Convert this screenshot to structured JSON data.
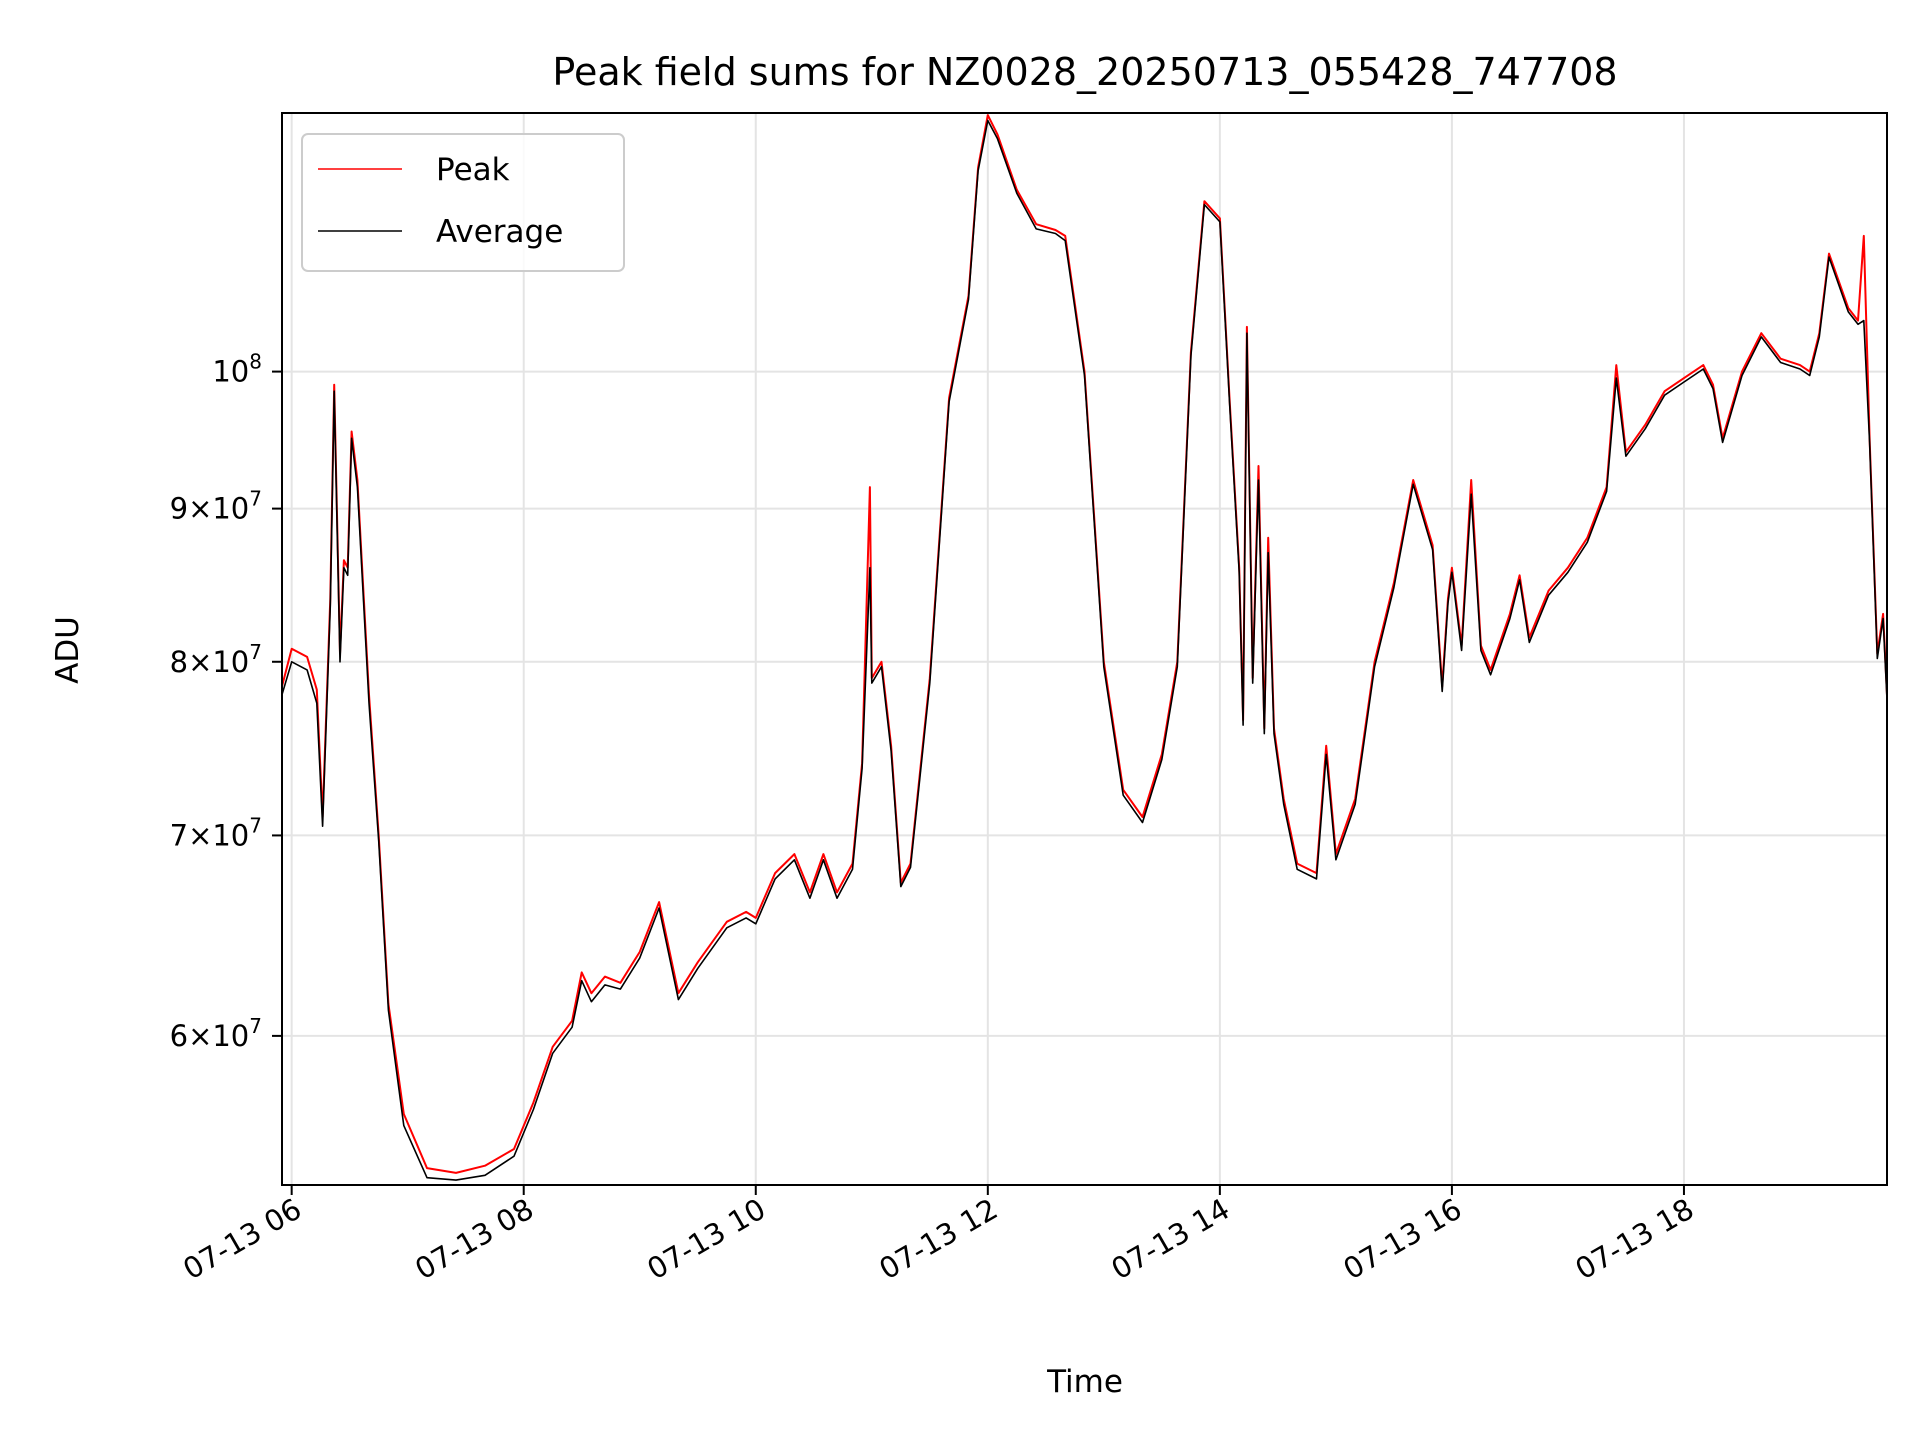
{
  "chart_data": {
    "type": "line",
    "title": "Peak field sums for NZ0028_20250713_055428_747708",
    "xlabel": "Time",
    "ylabel": "ADU",
    "y_scale": "log",
    "ylim": [
      53500000,
      122000000
    ],
    "xlim": [
      "2025-07-13 05:55",
      "2025-07-13 19:45"
    ],
    "grid": true,
    "legend_position": "top-left",
    "x_ticks": [
      {
        "t": "2025-07-13 06:00",
        "label": "07-13 06"
      },
      {
        "t": "2025-07-13 08:00",
        "label": "07-13 08"
      },
      {
        "t": "2025-07-13 10:00",
        "label": "07-13 10"
      },
      {
        "t": "2025-07-13 12:00",
        "label": "07-13 12"
      },
      {
        "t": "2025-07-13 14:00",
        "label": "07-13 14"
      },
      {
        "t": "2025-07-13 16:00",
        "label": "07-13 16"
      },
      {
        "t": "2025-07-13 18:00",
        "label": "07-13 18"
      }
    ],
    "y_ticks": [
      {
        "value": 60000000,
        "base": "6",
        "exp": "7"
      },
      {
        "value": 70000000,
        "base": "7",
        "exp": "7"
      },
      {
        "value": 80000000,
        "base": "8",
        "exp": "7"
      },
      {
        "value": 90000000,
        "base": "9",
        "exp": "7"
      },
      {
        "value": 100000000,
        "base": "",
        "exp": "8"
      }
    ],
    "series": [
      {
        "name": "Peak",
        "color": "#ff0000",
        "points": [
          [
            "2025-07-13 05:55",
            78.5
          ],
          [
            "2025-07-13 06:00",
            80.8
          ],
          [
            "2025-07-13 06:08",
            80.3
          ],
          [
            "2025-07-13 06:13",
            78.3
          ],
          [
            "2025-07-13 06:16",
            71.0
          ],
          [
            "2025-07-13 06:20",
            84.0
          ],
          [
            "2025-07-13 06:22",
            99.0
          ],
          [
            "2025-07-13 06:25",
            80.5
          ],
          [
            "2025-07-13 06:27",
            86.5
          ],
          [
            "2025-07-13 06:29",
            86.0
          ],
          [
            "2025-07-13 06:31",
            95.5
          ],
          [
            "2025-07-13 06:34",
            92.0
          ],
          [
            "2025-07-13 06:40",
            78.0
          ],
          [
            "2025-07-13 06:45",
            70.0
          ],
          [
            "2025-07-13 06:50",
            61.5
          ],
          [
            "2025-07-13 06:58",
            56.5
          ],
          [
            "2025-07-13 07:10",
            54.2
          ],
          [
            "2025-07-13 07:25",
            54.0
          ],
          [
            "2025-07-13 07:40",
            54.3
          ],
          [
            "2025-07-13 07:55",
            55.0
          ],
          [
            "2025-07-13 08:05",
            57.0
          ],
          [
            "2025-07-13 08:15",
            59.5
          ],
          [
            "2025-07-13 08:25",
            60.7
          ],
          [
            "2025-07-13 08:30",
            63.0
          ],
          [
            "2025-07-13 08:35",
            62.0
          ],
          [
            "2025-07-13 08:42",
            62.8
          ],
          [
            "2025-07-13 08:50",
            62.5
          ],
          [
            "2025-07-13 09:00",
            64.0
          ],
          [
            "2025-07-13 09:10",
            66.5
          ],
          [
            "2025-07-13 09:20",
            62.0
          ],
          [
            "2025-07-13 09:30",
            63.5
          ],
          [
            "2025-07-13 09:45",
            65.5
          ],
          [
            "2025-07-13 09:55",
            66.0
          ],
          [
            "2025-07-13 10:00",
            65.7
          ],
          [
            "2025-07-13 10:10",
            68.0
          ],
          [
            "2025-07-13 10:20",
            69.0
          ],
          [
            "2025-07-13 10:28",
            67.0
          ],
          [
            "2025-07-13 10:35",
            69.0
          ],
          [
            "2025-07-13 10:42",
            67.0
          ],
          [
            "2025-07-13 10:50",
            68.5
          ],
          [
            "2025-07-13 10:55",
            74.0
          ],
          [
            "2025-07-13 10:59",
            91.5
          ],
          [
            "2025-07-13 11:00",
            79.0
          ],
          [
            "2025-07-13 11:05",
            80.0
          ],
          [
            "2025-07-13 11:10",
            75.0
          ],
          [
            "2025-07-13 11:15",
            67.5
          ],
          [
            "2025-07-13 11:20",
            68.5
          ],
          [
            "2025-07-13 11:30",
            79.0
          ],
          [
            "2025-07-13 11:40",
            98.0
          ],
          [
            "2025-07-13 11:50",
            106.0
          ],
          [
            "2025-07-13 11:55",
            117.0
          ],
          [
            "2025-07-13 12:00",
            121.8
          ],
          [
            "2025-07-13 12:05",
            120.0
          ],
          [
            "2025-07-13 12:15",
            115.0
          ],
          [
            "2025-07-13 12:25",
            112.0
          ],
          [
            "2025-07-13 12:35",
            111.5
          ],
          [
            "2025-07-13 12:40",
            111.0
          ],
          [
            "2025-07-13 12:50",
            100.0
          ],
          [
            "2025-07-13 13:00",
            80.0
          ],
          [
            "2025-07-13 13:10",
            72.5
          ],
          [
            "2025-07-13 13:20",
            71.0
          ],
          [
            "2025-07-13 13:30",
            74.5
          ],
          [
            "2025-07-13 13:38",
            80.0
          ],
          [
            "2025-07-13 13:45",
            101.5
          ],
          [
            "2025-07-13 13:52",
            114.0
          ],
          [
            "2025-07-13 14:00",
            112.5
          ],
          [
            "2025-07-13 14:05",
            98.0
          ],
          [
            "2025-07-13 14:10",
            86.0
          ],
          [
            "2025-07-13 14:12",
            76.5
          ],
          [
            "2025-07-13 14:14",
            103.5
          ],
          [
            "2025-07-13 14:17",
            79.0
          ],
          [
            "2025-07-13 14:20",
            93.0
          ],
          [
            "2025-07-13 14:23",
            76.0
          ],
          [
            "2025-07-13 14:25",
            88.0
          ],
          [
            "2025-07-13 14:28",
            76.0
          ],
          [
            "2025-07-13 14:33",
            72.0
          ],
          [
            "2025-07-13 14:40",
            68.5
          ],
          [
            "2025-07-13 14:50",
            68.0
          ],
          [
            "2025-07-13 14:55",
            75.0
          ],
          [
            "2025-07-13 15:00",
            69.0
          ],
          [
            "2025-07-13 15:10",
            72.0
          ],
          [
            "2025-07-13 15:20",
            80.0
          ],
          [
            "2025-07-13 15:30",
            85.0
          ],
          [
            "2025-07-13 15:40",
            92.0
          ],
          [
            "2025-07-13 15:50",
            87.5
          ],
          [
            "2025-07-13 15:55",
            78.5
          ],
          [
            "2025-07-13 15:58",
            84.0
          ],
          [
            "2025-07-13 16:00",
            86.0
          ],
          [
            "2025-07-13 16:05",
            81.0
          ],
          [
            "2025-07-13 16:10",
            92.0
          ],
          [
            "2025-07-13 16:15",
            81.0
          ],
          [
            "2025-07-13 16:20",
            79.5
          ],
          [
            "2025-07-13 16:30",
            83.0
          ],
          [
            "2025-07-13 16:35",
            85.5
          ],
          [
            "2025-07-13 16:40",
            81.5
          ],
          [
            "2025-07-13 16:50",
            84.5
          ],
          [
            "2025-07-13 17:00",
            86.0
          ],
          [
            "2025-07-13 17:10",
            88.0
          ],
          [
            "2025-07-13 17:20",
            91.5
          ],
          [
            "2025-07-13 17:25",
            100.5
          ],
          [
            "2025-07-13 17:30",
            94.0
          ],
          [
            "2025-07-13 17:40",
            96.0
          ],
          [
            "2025-07-13 17:50",
            98.5
          ],
          [
            "2025-07-13 18:00",
            99.5
          ],
          [
            "2025-07-13 18:10",
            100.5
          ],
          [
            "2025-07-13 18:15",
            99.0
          ],
          [
            "2025-07-13 18:20",
            95.0
          ],
          [
            "2025-07-13 18:30",
            100.0
          ],
          [
            "2025-07-13 18:40",
            103.0
          ],
          [
            "2025-07-13 18:50",
            101.0
          ],
          [
            "2025-07-13 19:00",
            100.5
          ],
          [
            "2025-07-13 19:05",
            100.0
          ],
          [
            "2025-07-13 19:10",
            103.0
          ],
          [
            "2025-07-13 19:15",
            109.5
          ],
          [
            "2025-07-13 19:25",
            105.0
          ],
          [
            "2025-07-13 19:30",
            104.0
          ],
          [
            "2025-07-13 19:33",
            111.0
          ],
          [
            "2025-07-13 19:36",
            95.0
          ],
          [
            "2025-07-13 19:40",
            80.5
          ],
          [
            "2025-07-13 19:43",
            83.0
          ],
          [
            "2025-07-13 19:45",
            78.0
          ]
        ]
      },
      {
        "name": "Average",
        "color": "#000000",
        "points": [
          [
            "2025-07-13 05:55",
            78.0
          ],
          [
            "2025-07-13 06:00",
            80.0
          ],
          [
            "2025-07-13 06:08",
            79.5
          ],
          [
            "2025-07-13 06:13",
            77.5
          ],
          [
            "2025-07-13 06:16",
            70.5
          ],
          [
            "2025-07-13 06:20",
            83.5
          ],
          [
            "2025-07-13 06:22",
            98.5
          ],
          [
            "2025-07-13 06:25",
            80.0
          ],
          [
            "2025-07-13 06:27",
            86.0
          ],
          [
            "2025-07-13 06:29",
            85.5
          ],
          [
            "2025-07-13 06:31",
            95.0
          ],
          [
            "2025-07-13 06:34",
            91.5
          ],
          [
            "2025-07-13 06:40",
            77.5
          ],
          [
            "2025-07-13 06:45",
            69.7
          ],
          [
            "2025-07-13 06:50",
            61.2
          ],
          [
            "2025-07-13 06:58",
            56.0
          ],
          [
            "2025-07-13 07:10",
            53.8
          ],
          [
            "2025-07-13 07:25",
            53.7
          ],
          [
            "2025-07-13 07:40",
            53.9
          ],
          [
            "2025-07-13 07:55",
            54.7
          ],
          [
            "2025-07-13 08:05",
            56.7
          ],
          [
            "2025-07-13 08:15",
            59.2
          ],
          [
            "2025-07-13 08:25",
            60.4
          ],
          [
            "2025-07-13 08:30",
            62.6
          ],
          [
            "2025-07-13 08:35",
            61.6
          ],
          [
            "2025-07-13 08:42",
            62.4
          ],
          [
            "2025-07-13 08:50",
            62.2
          ],
          [
            "2025-07-13 09:00",
            63.7
          ],
          [
            "2025-07-13 09:10",
            66.2
          ],
          [
            "2025-07-13 09:20",
            61.7
          ],
          [
            "2025-07-13 09:30",
            63.2
          ],
          [
            "2025-07-13 09:45",
            65.2
          ],
          [
            "2025-07-13 09:55",
            65.7
          ],
          [
            "2025-07-13 10:00",
            65.4
          ],
          [
            "2025-07-13 10:10",
            67.7
          ],
          [
            "2025-07-13 10:20",
            68.7
          ],
          [
            "2025-07-13 10:28",
            66.7
          ],
          [
            "2025-07-13 10:35",
            68.7
          ],
          [
            "2025-07-13 10:42",
            66.7
          ],
          [
            "2025-07-13 10:50",
            68.2
          ],
          [
            "2025-07-13 10:55",
            73.7
          ],
          [
            "2025-07-13 10:59",
            86.0
          ],
          [
            "2025-07-13 11:00",
            78.7
          ],
          [
            "2025-07-13 11:05",
            79.7
          ],
          [
            "2025-07-13 11:10",
            74.7
          ],
          [
            "2025-07-13 11:15",
            67.3
          ],
          [
            "2025-07-13 11:20",
            68.3
          ],
          [
            "2025-07-13 11:30",
            78.7
          ],
          [
            "2025-07-13 11:40",
            97.7
          ],
          [
            "2025-07-13 11:50",
            105.7
          ],
          [
            "2025-07-13 11:55",
            116.7
          ],
          [
            "2025-07-13 12:00",
            121.3
          ],
          [
            "2025-07-13 12:05",
            119.6
          ],
          [
            "2025-07-13 12:15",
            114.7
          ],
          [
            "2025-07-13 12:25",
            111.6
          ],
          [
            "2025-07-13 12:35",
            111.2
          ],
          [
            "2025-07-13 12:40",
            110.6
          ],
          [
            "2025-07-13 12:50",
            99.7
          ],
          [
            "2025-07-13 13:00",
            79.7
          ],
          [
            "2025-07-13 13:10",
            72.2
          ],
          [
            "2025-07-13 13:20",
            70.7
          ],
          [
            "2025-07-13 13:30",
            74.2
          ],
          [
            "2025-07-13 13:38",
            79.7
          ],
          [
            "2025-07-13 13:45",
            101.2
          ],
          [
            "2025-07-13 13:52",
            113.7
          ],
          [
            "2025-07-13 14:00",
            112.2
          ],
          [
            "2025-07-13 14:05",
            97.7
          ],
          [
            "2025-07-13 14:10",
            85.7
          ],
          [
            "2025-07-13 14:12",
            76.2
          ],
          [
            "2025-07-13 14:14",
            103.0
          ],
          [
            "2025-07-13 14:17",
            78.7
          ],
          [
            "2025-07-13 14:20",
            92.0
          ],
          [
            "2025-07-13 14:23",
            75.7
          ],
          [
            "2025-07-13 14:25",
            87.0
          ],
          [
            "2025-07-13 14:28",
            75.7
          ],
          [
            "2025-07-13 14:33",
            71.7
          ],
          [
            "2025-07-13 14:40",
            68.2
          ],
          [
            "2025-07-13 14:50",
            67.7
          ],
          [
            "2025-07-13 14:55",
            74.5
          ],
          [
            "2025-07-13 15:00",
            68.7
          ],
          [
            "2025-07-13 15:10",
            71.7
          ],
          [
            "2025-07-13 15:20",
            79.7
          ],
          [
            "2025-07-13 15:30",
            84.7
          ],
          [
            "2025-07-13 15:40",
            91.7
          ],
          [
            "2025-07-13 15:50",
            87.2
          ],
          [
            "2025-07-13 15:55",
            78.2
          ],
          [
            "2025-07-13 15:58",
            83.7
          ],
          [
            "2025-07-13 16:00",
            85.7
          ],
          [
            "2025-07-13 16:05",
            80.7
          ],
          [
            "2025-07-13 16:10",
            91.0
          ],
          [
            "2025-07-13 16:15",
            80.7
          ],
          [
            "2025-07-13 16:20",
            79.2
          ],
          [
            "2025-07-13 16:30",
            82.7
          ],
          [
            "2025-07-13 16:35",
            85.2
          ],
          [
            "2025-07-13 16:40",
            81.2
          ],
          [
            "2025-07-13 16:50",
            84.2
          ],
          [
            "2025-07-13 17:00",
            85.7
          ],
          [
            "2025-07-13 17:10",
            87.7
          ],
          [
            "2025-07-13 17:20",
            91.2
          ],
          [
            "2025-07-13 17:25",
            99.5
          ],
          [
            "2025-07-13 17:30",
            93.7
          ],
          [
            "2025-07-13 17:40",
            95.7
          ],
          [
            "2025-07-13 17:50",
            98.2
          ],
          [
            "2025-07-13 18:00",
            99.2
          ],
          [
            "2025-07-13 18:10",
            100.2
          ],
          [
            "2025-07-13 18:15",
            98.7
          ],
          [
            "2025-07-13 18:20",
            94.7
          ],
          [
            "2025-07-13 18:30",
            99.7
          ],
          [
            "2025-07-13 18:40",
            102.7
          ],
          [
            "2025-07-13 18:50",
            100.7
          ],
          [
            "2025-07-13 19:00",
            100.2
          ],
          [
            "2025-07-13 19:05",
            99.7
          ],
          [
            "2025-07-13 19:10",
            102.7
          ],
          [
            "2025-07-13 19:15",
            109.2
          ],
          [
            "2025-07-13 19:25",
            104.7
          ],
          [
            "2025-07-13 19:30",
            103.7
          ],
          [
            "2025-07-13 19:33",
            104.0
          ],
          [
            "2025-07-13 19:36",
            94.7
          ],
          [
            "2025-07-13 19:40",
            80.2
          ],
          [
            "2025-07-13 19:43",
            82.7
          ],
          [
            "2025-07-13 19:45",
            77.7
          ]
        ]
      }
    ],
    "y_point_unit_multiplier": 1000000
  }
}
